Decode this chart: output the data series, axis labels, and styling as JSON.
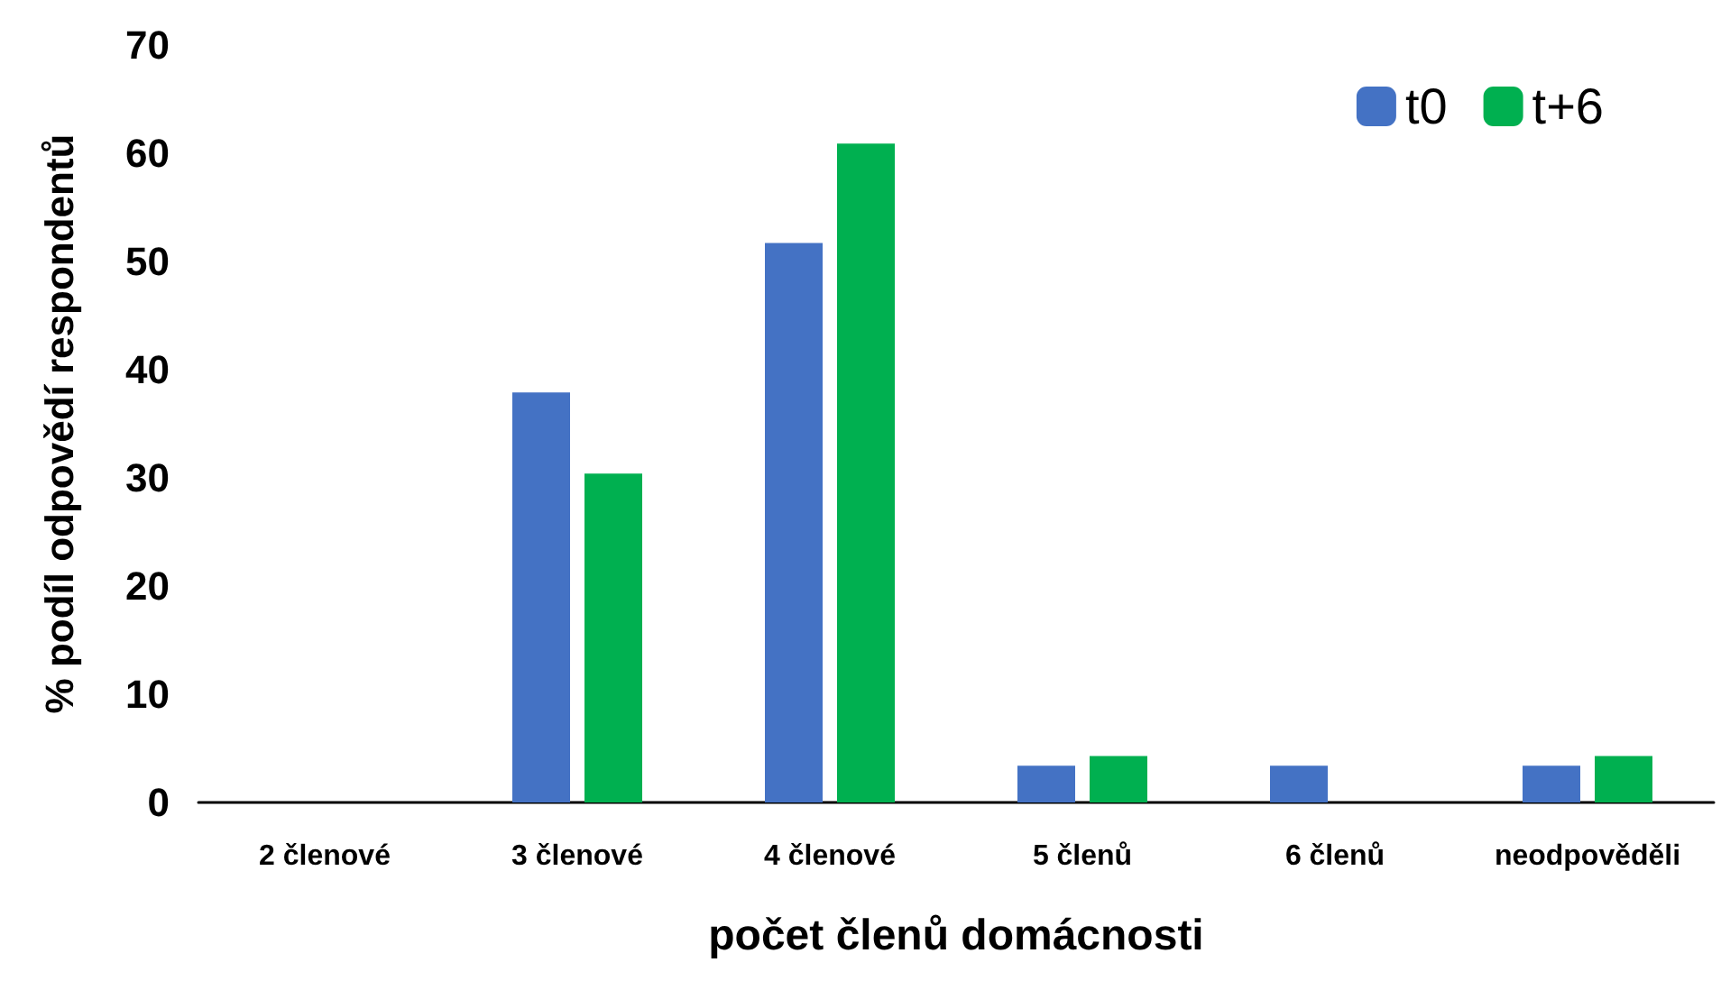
{
  "chart_data": {
    "type": "bar",
    "xlabel": "počet členů domácnosti",
    "ylabel": "% podíl odpovědí respondentů",
    "categories": [
      "2 členové",
      "3 členové",
      "4 členové",
      "5 členů",
      "6 členů",
      "neodpověděli"
    ],
    "series": [
      {
        "name": "t0",
        "color": "#4472c4",
        "values": [
          0,
          37.9,
          51.7,
          3.4,
          3.4,
          3.4
        ]
      },
      {
        "name": "t+6",
        "color": "#00b050",
        "values": [
          0,
          30.4,
          60.9,
          4.3,
          0,
          4.3
        ]
      }
    ],
    "ylim": [
      0,
      70
    ],
    "yticks": [
      0,
      10,
      20,
      30,
      40,
      50,
      60,
      70
    ],
    "grid": false,
    "legend": "top right"
  }
}
